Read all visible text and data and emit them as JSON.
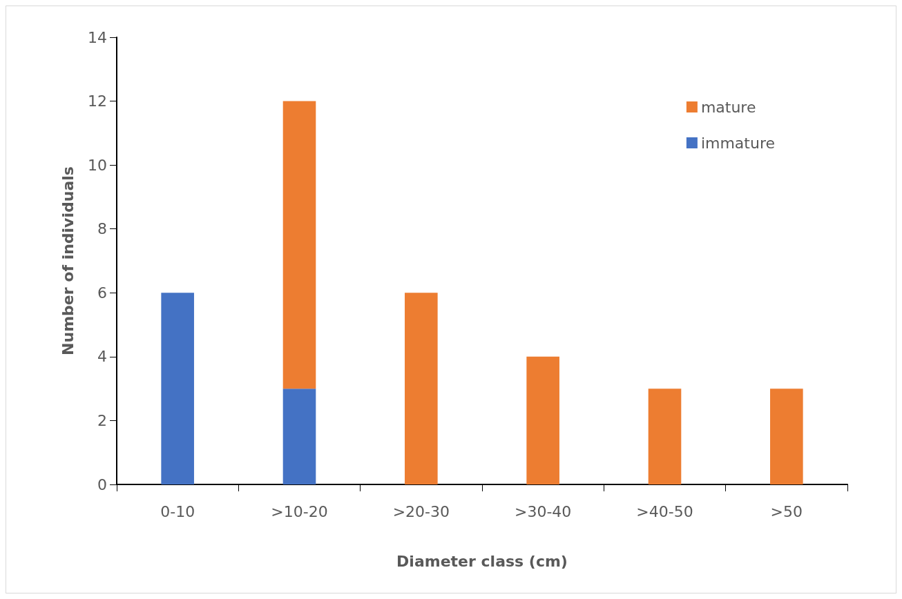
{
  "chart_data": {
    "type": "bar",
    "stacked": true,
    "xlabel": "Diameter class (cm)",
    "ylabel": "Number of individuals",
    "categories": [
      "0-10",
      ">10-20",
      ">20-30",
      ">30-40",
      ">40-50",
      ">50"
    ],
    "series": [
      {
        "name": "immature",
        "color": "#4472c4",
        "values": [
          6,
          3,
          0,
          0,
          0,
          0
        ]
      },
      {
        "name": "mature",
        "color": "#ed7d31",
        "values": [
          0,
          9,
          6,
          4,
          3,
          3
        ]
      }
    ],
    "ylim": [
      0,
      14
    ],
    "yticks": [
      0,
      2,
      4,
      6,
      8,
      10,
      12,
      14
    ],
    "grid": false,
    "legend": "top right"
  }
}
